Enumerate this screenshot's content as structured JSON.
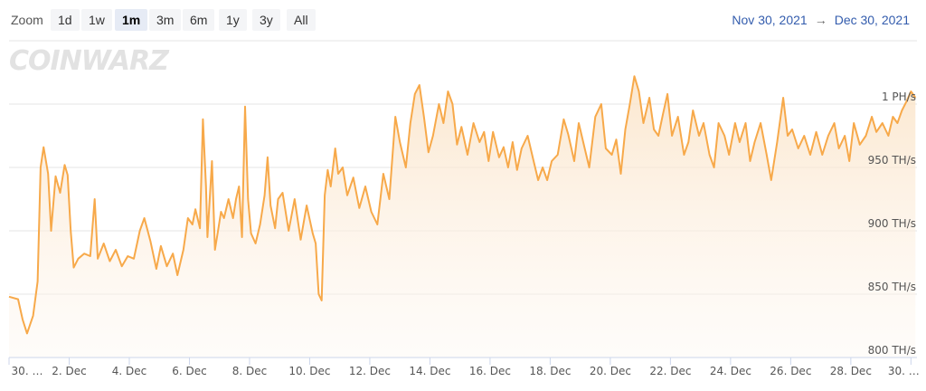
{
  "toolbar": {
    "zoom_label": "Zoom",
    "buttons": [
      "1d",
      "1w",
      "1m",
      "3m",
      "6m",
      "1y",
      "3y",
      "All"
    ],
    "active": "1m",
    "range_start": "Nov 30, 2021",
    "range_arrow": "→",
    "range_end": "Dec 30, 2021"
  },
  "watermark": "COINWARZ",
  "colors": {
    "line": "#f7a94a",
    "fill_top": "#fbe7d0",
    "grid": "#e6e6e6"
  },
  "chart_data": {
    "type": "area",
    "x_tick_labels": [
      "30. …",
      "2. Dec",
      "4. Dec",
      "6. Dec",
      "8. Dec",
      "10. Dec",
      "12. Dec",
      "14. Dec",
      "16. Dec",
      "18. Dec",
      "20. Dec",
      "22. Dec",
      "24. Dec",
      "26. Dec",
      "28. Dec",
      "30. …"
    ],
    "y_tick_labels": [
      "800 TH/s",
      "850 TH/s",
      "900 TH/s",
      "950 TH/s",
      "1 PH/s"
    ],
    "y_ticks": [
      800,
      850,
      900,
      950,
      1000
    ],
    "ylim": [
      800,
      1050
    ],
    "xlim": [
      0,
      30.2
    ],
    "series": [
      {
        "points": [
          [
            0.0,
            848
          ],
          [
            0.3,
            846
          ],
          [
            0.45,
            830
          ],
          [
            0.6,
            819
          ],
          [
            0.8,
            833
          ],
          [
            0.95,
            860
          ],
          [
            1.05,
            950
          ],
          [
            1.15,
            966
          ],
          [
            1.3,
            945
          ],
          [
            1.4,
            900
          ],
          [
            1.55,
            943
          ],
          [
            1.7,
            930
          ],
          [
            1.85,
            952
          ],
          [
            1.95,
            944
          ],
          [
            2.05,
            900
          ],
          [
            2.15,
            871
          ],
          [
            2.3,
            878
          ],
          [
            2.5,
            882
          ],
          [
            2.7,
            880
          ],
          [
            2.85,
            925
          ],
          [
            2.95,
            878
          ],
          [
            3.15,
            890
          ],
          [
            3.35,
            876
          ],
          [
            3.55,
            885
          ],
          [
            3.75,
            872
          ],
          [
            3.95,
            880
          ],
          [
            4.15,
            878
          ],
          [
            4.35,
            900
          ],
          [
            4.5,
            910
          ],
          [
            4.7,
            892
          ],
          [
            4.9,
            870
          ],
          [
            5.05,
            888
          ],
          [
            5.25,
            872
          ],
          [
            5.45,
            882
          ],
          [
            5.6,
            865
          ],
          [
            5.8,
            885
          ],
          [
            5.95,
            910
          ],
          [
            6.1,
            905
          ],
          [
            6.2,
            917
          ],
          [
            6.35,
            902
          ],
          [
            6.45,
            988
          ],
          [
            6.55,
            935
          ],
          [
            6.6,
            895
          ],
          [
            6.75,
            955
          ],
          [
            6.85,
            885
          ],
          [
            6.95,
            900
          ],
          [
            7.05,
            915
          ],
          [
            7.15,
            910
          ],
          [
            7.3,
            925
          ],
          [
            7.45,
            910
          ],
          [
            7.55,
            925
          ],
          [
            7.65,
            935
          ],
          [
            7.75,
            895
          ],
          [
            7.85,
            998
          ],
          [
            7.95,
            925
          ],
          [
            8.05,
            898
          ],
          [
            8.2,
            890
          ],
          [
            8.35,
            905
          ],
          [
            8.5,
            928
          ],
          [
            8.6,
            958
          ],
          [
            8.7,
            920
          ],
          [
            8.85,
            902
          ],
          [
            8.95,
            925
          ],
          [
            9.1,
            930
          ],
          [
            9.3,
            900
          ],
          [
            9.5,
            925
          ],
          [
            9.7,
            893
          ],
          [
            9.9,
            920
          ],
          [
            10.1,
            898
          ],
          [
            10.2,
            890
          ],
          [
            10.3,
            850
          ],
          [
            10.4,
            845
          ],
          [
            10.5,
            928
          ],
          [
            10.6,
            948
          ],
          [
            10.7,
            935
          ],
          [
            10.85,
            965
          ],
          [
            10.95,
            945
          ],
          [
            11.1,
            950
          ],
          [
            11.25,
            928
          ],
          [
            11.45,
            942
          ],
          [
            11.65,
            918
          ],
          [
            11.85,
            935
          ],
          [
            12.05,
            915
          ],
          [
            12.25,
            905
          ],
          [
            12.45,
            945
          ],
          [
            12.65,
            925
          ],
          [
            12.85,
            990
          ],
          [
            13.0,
            970
          ],
          [
            13.2,
            950
          ],
          [
            13.35,
            985
          ],
          [
            13.5,
            1008
          ],
          [
            13.65,
            1015
          ],
          [
            13.8,
            990
          ],
          [
            13.95,
            962
          ],
          [
            14.1,
            975
          ],
          [
            14.3,
            1000
          ],
          [
            14.45,
            985
          ],
          [
            14.6,
            1010
          ],
          [
            14.75,
            1000
          ],
          [
            14.9,
            968
          ],
          [
            15.05,
            982
          ],
          [
            15.25,
            960
          ],
          [
            15.45,
            985
          ],
          [
            15.65,
            970
          ],
          [
            15.8,
            978
          ],
          [
            15.95,
            955
          ],
          [
            16.1,
            978
          ],
          [
            16.3,
            958
          ],
          [
            16.45,
            966
          ],
          [
            16.6,
            950
          ],
          [
            16.75,
            970
          ],
          [
            16.9,
            948
          ],
          [
            17.05,
            965
          ],
          [
            17.25,
            975
          ],
          [
            17.45,
            955
          ],
          [
            17.6,
            940
          ],
          [
            17.75,
            950
          ],
          [
            17.9,
            940
          ],
          [
            18.05,
            955
          ],
          [
            18.25,
            960
          ],
          [
            18.45,
            988
          ],
          [
            18.6,
            976
          ],
          [
            18.8,
            955
          ],
          [
            18.95,
            985
          ],
          [
            19.15,
            965
          ],
          [
            19.3,
            950
          ],
          [
            19.5,
            990
          ],
          [
            19.7,
            1000
          ],
          [
            19.85,
            965
          ],
          [
            20.05,
            960
          ],
          [
            20.2,
            972
          ],
          [
            20.35,
            945
          ],
          [
            20.5,
            980
          ],
          [
            20.65,
            1000
          ],
          [
            20.8,
            1022
          ],
          [
            20.95,
            1010
          ],
          [
            21.1,
            985
          ],
          [
            21.3,
            1005
          ],
          [
            21.45,
            980
          ],
          [
            21.6,
            975
          ],
          [
            21.75,
            992
          ],
          [
            21.9,
            1008
          ],
          [
            22.05,
            975
          ],
          [
            22.25,
            990
          ],
          [
            22.45,
            960
          ],
          [
            22.6,
            970
          ],
          [
            22.75,
            995
          ],
          [
            22.95,
            975
          ],
          [
            23.1,
            985
          ],
          [
            23.3,
            960
          ],
          [
            23.45,
            950
          ],
          [
            23.6,
            985
          ],
          [
            23.8,
            975
          ],
          [
            23.95,
            960
          ],
          [
            24.15,
            985
          ],
          [
            24.3,
            970
          ],
          [
            24.5,
            985
          ],
          [
            24.65,
            955
          ],
          [
            24.8,
            970
          ],
          [
            25.0,
            985
          ],
          [
            25.2,
            960
          ],
          [
            25.35,
            940
          ],
          [
            25.55,
            970
          ],
          [
            25.75,
            1005
          ],
          [
            25.9,
            975
          ],
          [
            26.05,
            980
          ],
          [
            26.25,
            965
          ],
          [
            26.45,
            975
          ],
          [
            26.65,
            960
          ],
          [
            26.85,
            978
          ],
          [
            27.05,
            960
          ],
          [
            27.25,
            975
          ],
          [
            27.45,
            985
          ],
          [
            27.6,
            965
          ],
          [
            27.8,
            975
          ],
          [
            27.95,
            955
          ],
          [
            28.1,
            985
          ],
          [
            28.3,
            968
          ],
          [
            28.5,
            975
          ],
          [
            28.7,
            990
          ],
          [
            28.85,
            978
          ],
          [
            29.05,
            985
          ],
          [
            29.25,
            975
          ],
          [
            29.4,
            990
          ],
          [
            29.55,
            985
          ],
          [
            29.7,
            995
          ],
          [
            29.85,
            1002
          ],
          [
            30.0,
            1010
          ],
          [
            30.15,
            1005
          ]
        ]
      }
    ]
  }
}
